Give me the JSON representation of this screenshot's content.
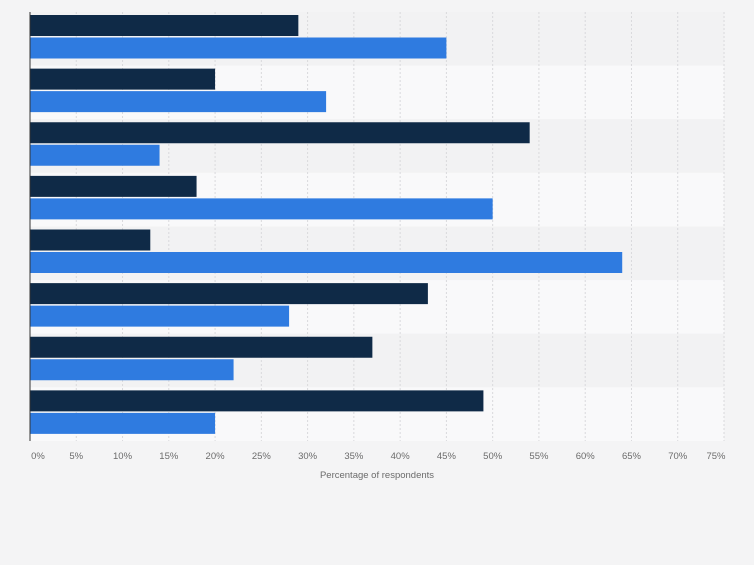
{
  "chart_data": {
    "type": "bar",
    "orientation": "horizontal",
    "categories": [
      "",
      "",
      "",
      "",
      "",
      "",
      "",
      ""
    ],
    "series": [
      {
        "values": [
          29,
          20,
          54,
          18,
          13,
          43,
          37,
          49
        ],
        "color": "#0f2a47"
      },
      {
        "values": [
          45,
          32,
          14,
          50,
          64,
          28,
          22,
          20
        ],
        "color": "#2f7be0"
      }
    ],
    "xlabel": "Percentage of respondents",
    "ylabel": "",
    "xlim": [
      0,
      75
    ],
    "x_ticks": [
      "0%",
      "5%",
      "10%",
      "15%",
      "20%",
      "25%",
      "30%",
      "35%",
      "40%",
      "45%",
      "50%",
      "55%",
      "60%",
      "65%",
      "70%",
      "75%"
    ],
    "grid": true,
    "legend": "none"
  },
  "colors": {
    "page_background": "#f4f4f5",
    "row_band_light": "#f9f9fa",
    "row_band_dark": "#f2f2f3",
    "gridline": "#d9d9dc",
    "axis_line": "#333333",
    "tick_text": "#6b6b6b"
  }
}
